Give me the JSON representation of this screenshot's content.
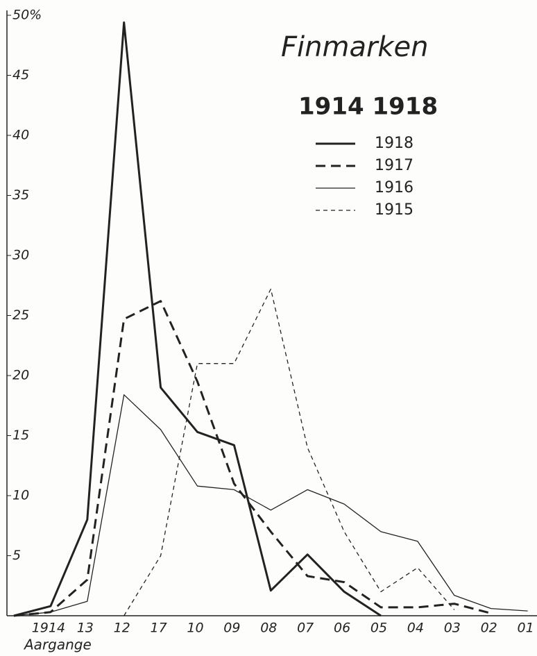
{
  "chart_data": {
    "type": "line",
    "title": "Finmarken",
    "subtitle": "1914 1918",
    "x_label": "Aargange",
    "categories": [
      null,
      "1914",
      "13",
      "12",
      "17",
      "10",
      "09",
      "08",
      "07",
      "06",
      "05",
      "04",
      "03",
      "02",
      "01"
    ],
    "series": [
      {
        "name": "1918",
        "color": "#222222",
        "width": 3,
        "dash": "none",
        "values": [
          0,
          0.8,
          8,
          49.4,
          19,
          15.3,
          14.2,
          2.1,
          5.1,
          2,
          0,
          null,
          null,
          null,
          null
        ]
      },
      {
        "name": "1917",
        "color": "#222222",
        "width": 3,
        "dash": "14 8",
        "values": [
          0,
          0.3,
          3,
          24.7,
          26.2,
          19.5,
          11,
          7,
          3.3,
          2.8,
          0.7,
          0.7,
          1,
          0.2,
          null
        ]
      },
      {
        "name": "1916",
        "color": "#222222",
        "width": 1.3,
        "dash": "none",
        "values": [
          0,
          0.3,
          1.2,
          18.4,
          15.5,
          10.8,
          10.5,
          8.8,
          10.5,
          9.3,
          7,
          6.2,
          1.7,
          0.6,
          0.4
        ]
      },
      {
        "name": "1915",
        "color": "#222222",
        "width": 1.3,
        "dash": "6 5",
        "values": [
          null,
          null,
          null,
          0,
          5,
          21,
          21,
          27.2,
          14,
          7,
          2,
          4,
          0.5,
          null,
          null
        ]
      }
    ],
    "ylim": [
      0,
      50
    ],
    "yticks": [
      5,
      10,
      15,
      20,
      25,
      30,
      35,
      40,
      45,
      {
        "value": 50,
        "label": "50%"
      }
    ],
    "grid": false
  }
}
